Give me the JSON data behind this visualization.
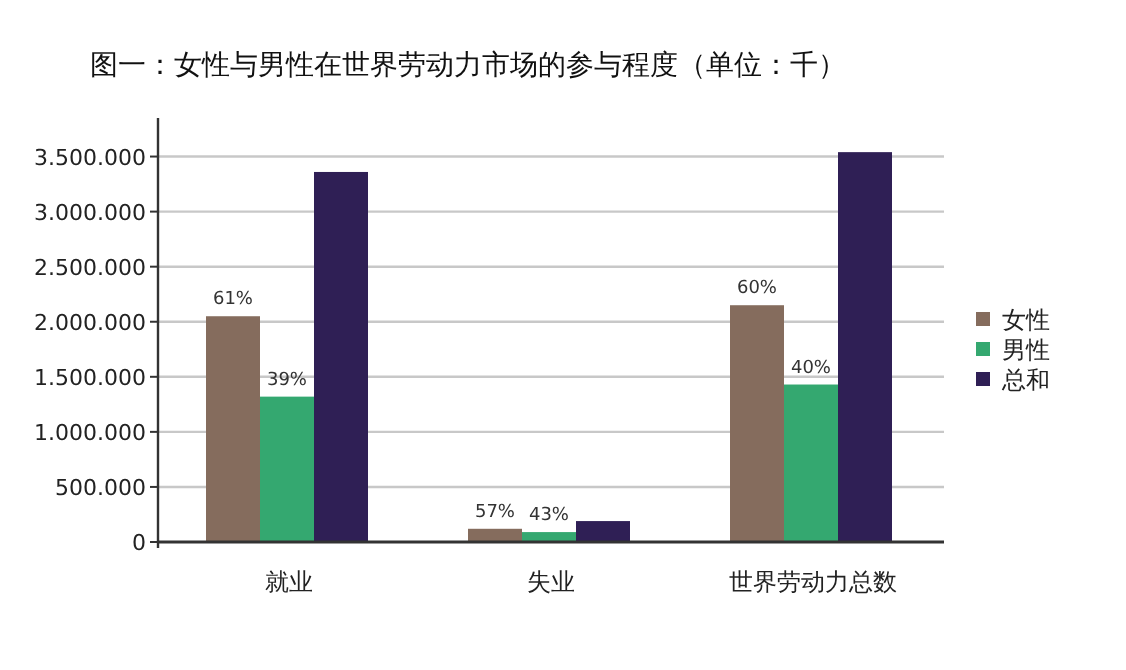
{
  "chart_data": {
    "type": "bar",
    "title": "图一：女性与男性在世界劳动力市场的参与程度（单位：千）",
    "categories": [
      "就业",
      "失业",
      "世界劳动力总数"
    ],
    "series": [
      {
        "name": "女性",
        "color": "#856c5d",
        "values": [
          2050000,
          120000,
          2150000
        ]
      },
      {
        "name": "男性",
        "color": "#34a870",
        "values": [
          1320000,
          90000,
          1430000
        ]
      },
      {
        "name": "总和",
        "color": "#2f1f55",
        "values": [
          3360000,
          190000,
          3540000
        ]
      }
    ],
    "ylim": [
      0,
      3850000
    ],
    "yticks": [
      {
        "value": 0,
        "label": "0"
      },
      {
        "value": 500000,
        "label": "500.000"
      },
      {
        "value": 1000000,
        "label": "1.000.000"
      },
      {
        "value": 1500000,
        "label": "1.500.000"
      },
      {
        "value": 2000000,
        "label": "2.000.000"
      },
      {
        "value": 2500000,
        "label": "2.500.000"
      },
      {
        "value": 3000000,
        "label": "3.000.000"
      },
      {
        "value": 3500000,
        "label": "3.500.000"
      }
    ],
    "annotations": [
      "61%",
      "57%",
      "60%",
      "39%",
      "43%",
      "40%"
    ],
    "grid": "y",
    "legend": "right"
  }
}
